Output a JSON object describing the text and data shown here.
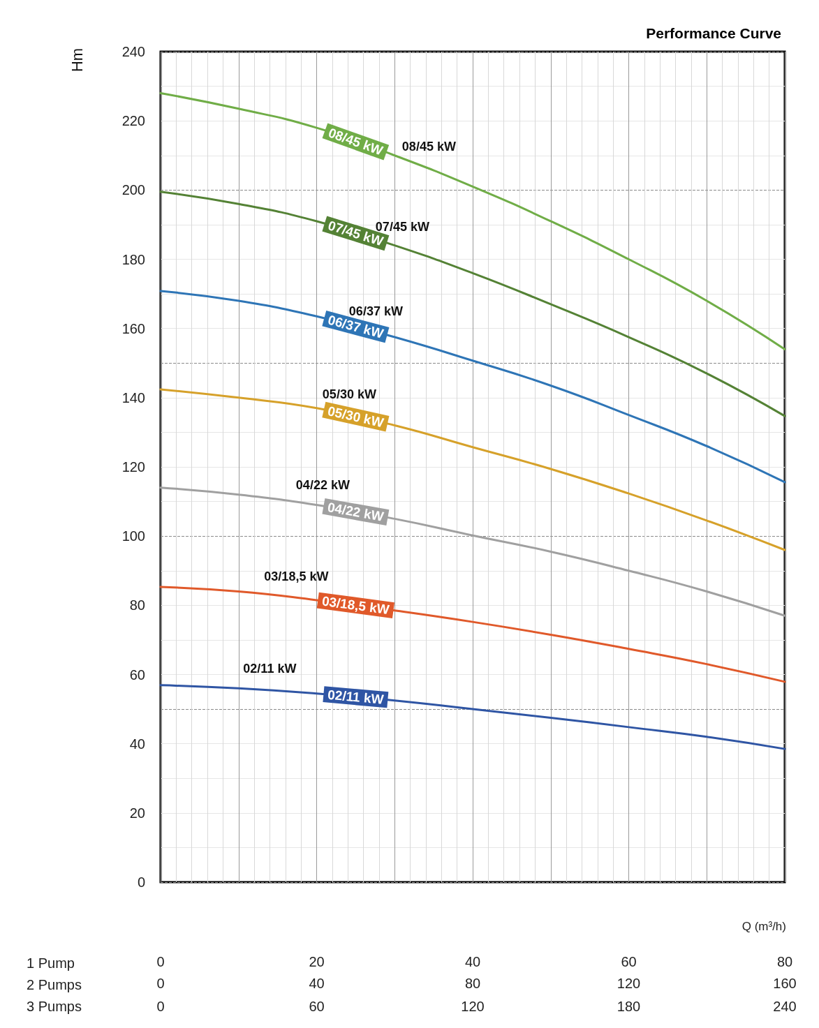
{
  "chart_data": {
    "type": "line",
    "title": "Performance Curve",
    "ylabel": "Hm",
    "xlabel": "Q (m³/h)",
    "x2label": "2 Pumps",
    "xlim": [
      0,
      80
    ],
    "xticks": [
      0,
      20,
      40,
      60,
      80
    ],
    "x2lim": [
      0,
      160
    ],
    "x2ticks": [
      0,
      40,
      80,
      120,
      160
    ],
    "ylim": [
      0,
      240
    ],
    "yticks": [
      0,
      20,
      40,
      60,
      80,
      100,
      120,
      140,
      160,
      180,
      200,
      220,
      240
    ],
    "grid": true,
    "marker": "none",
    "line_style": "solid",
    "x": [
      0,
      10,
      20,
      30,
      40,
      50,
      60,
      70,
      80
    ],
    "series": [
      {
        "name": "08/45 kW",
        "color": "#70ad47",
        "values": [
          228,
          223.5,
          218,
          210,
          201,
          191,
          180,
          168,
          154
        ]
      },
      {
        "name": "07/45 kW",
        "color": "#548235",
        "values": [
          199.5,
          196,
          191,
          184,
          176,
          167,
          157.5,
          147,
          134.7
        ]
      },
      {
        "name": "06/37 kW",
        "color": "#2e75b6",
        "values": [
          170.8,
          168,
          163.5,
          157.5,
          150.7,
          143.5,
          135,
          126,
          115.6
        ]
      },
      {
        "name": "05/30 kW",
        "color": "#d6a12a",
        "values": [
          142.4,
          140,
          137,
          132,
          125.7,
          119.4,
          112.3,
          104.5,
          96
        ]
      },
      {
        "name": "04/22 kW",
        "color": "#a0a0a0",
        "values": [
          114,
          112,
          109,
          105,
          100.2,
          95.5,
          90,
          84,
          77
        ]
      },
      {
        "name": "03/18,5 kW",
        "color": "#e0592a",
        "values": [
          85.3,
          84,
          81.5,
          78.5,
          75.2,
          71.5,
          67.4,
          63,
          57.9
        ]
      },
      {
        "name": "02/11 kW",
        "color": "#2f55a4",
        "values": [
          56.9,
          56,
          54.5,
          52.5,
          50,
          47.5,
          44.8,
          42,
          38.5
        ]
      }
    ],
    "annotations": [
      "1 Pump",
      "3 Pumps",
      "0",
      "60",
      "120",
      "180",
      "240",
      "08/45 kW",
      "07/45 kW",
      "06/37 kW",
      "05/30 kW",
      "04/22 kW",
      "03/18,5 kW",
      "02/11 kW"
    ]
  }
}
